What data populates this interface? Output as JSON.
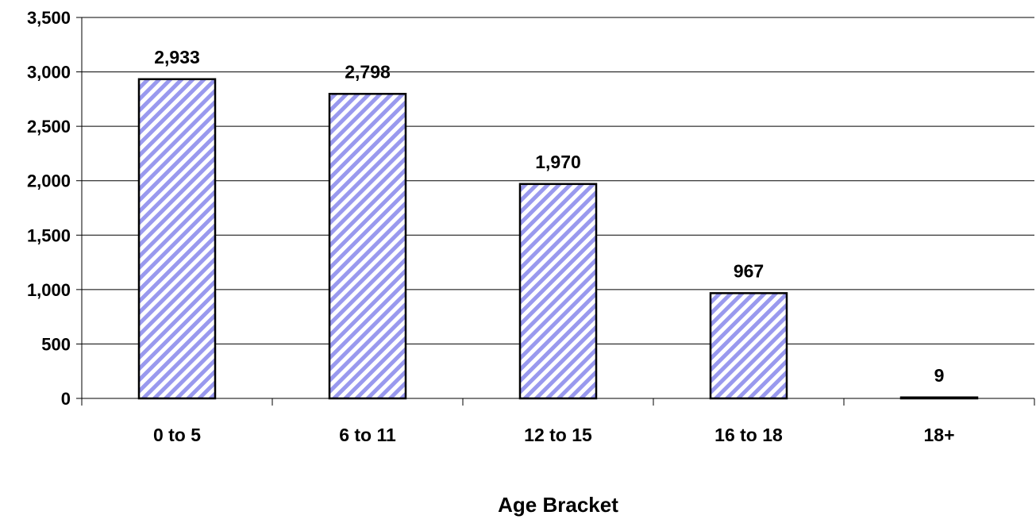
{
  "chart_data": {
    "type": "bar",
    "title": "",
    "xlabel": "Age Bracket",
    "ylabel": "",
    "categories": [
      "0 to 5",
      "6 to 11",
      "12 to 15",
      "16 to 18",
      "18+"
    ],
    "values": [
      2933,
      2798,
      1970,
      967,
      9
    ],
    "value_labels": [
      "2,933",
      "2,798",
      "1,970",
      "967",
      "9"
    ],
    "ylim": [
      0,
      3500
    ],
    "yticks": [
      0,
      500,
      1000,
      1500,
      2000,
      2500,
      3000,
      3500
    ],
    "ytick_labels": [
      "0",
      "500",
      "1,000",
      "1,500",
      "2,000",
      "2,500",
      "3,000",
      "3,500"
    ],
    "grid": true,
    "legend": "none",
    "bar_pattern": "diagonal-stripes",
    "colors": {
      "stripe": "#9999ee",
      "background": "#ffffff",
      "outline": "#000000",
      "gridline": "#000000"
    }
  }
}
